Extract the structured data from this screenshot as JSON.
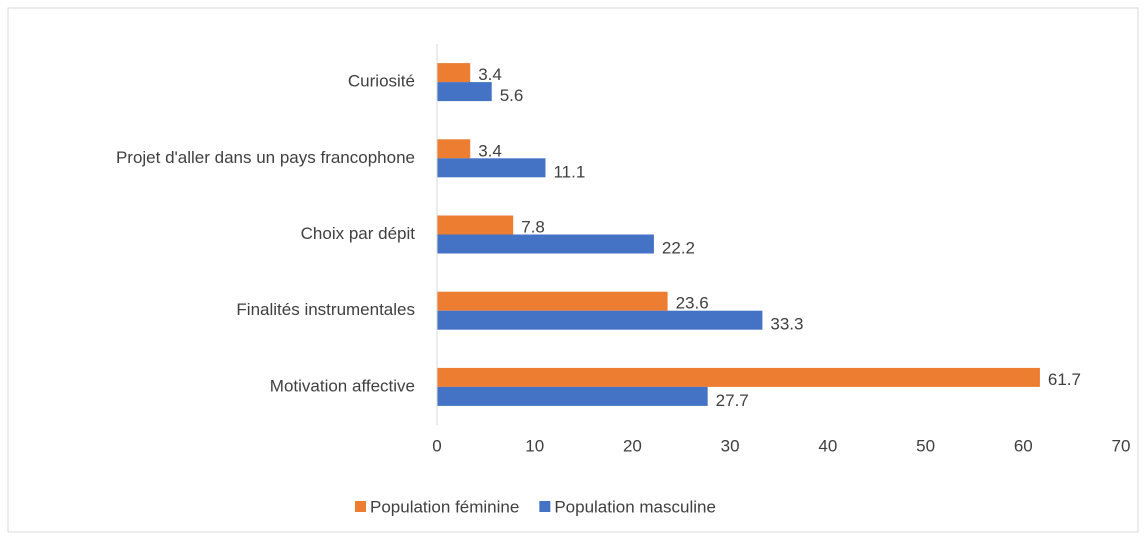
{
  "chart_data": {
    "type": "barh",
    "categories": [
      "Curiosité",
      "Projet d'aller dans un pays francophone",
      "Choix par dépit",
      "Finalités instrumentales",
      "Motivation affective"
    ],
    "series": [
      {
        "name": "Population féminine",
        "color": "#ed7d31",
        "values": [
          3.4,
          3.4,
          7.8,
          23.6,
          61.7
        ]
      },
      {
        "name": "Population masculine",
        "color": "#4472c4",
        "values": [
          5.6,
          11.1,
          22.2,
          33.3,
          27.7
        ]
      }
    ],
    "xlim": [
      0,
      70
    ],
    "xticks": [
      0,
      10,
      20,
      30,
      40,
      50,
      60,
      70
    ],
    "grid": false,
    "legend": "bottom"
  }
}
